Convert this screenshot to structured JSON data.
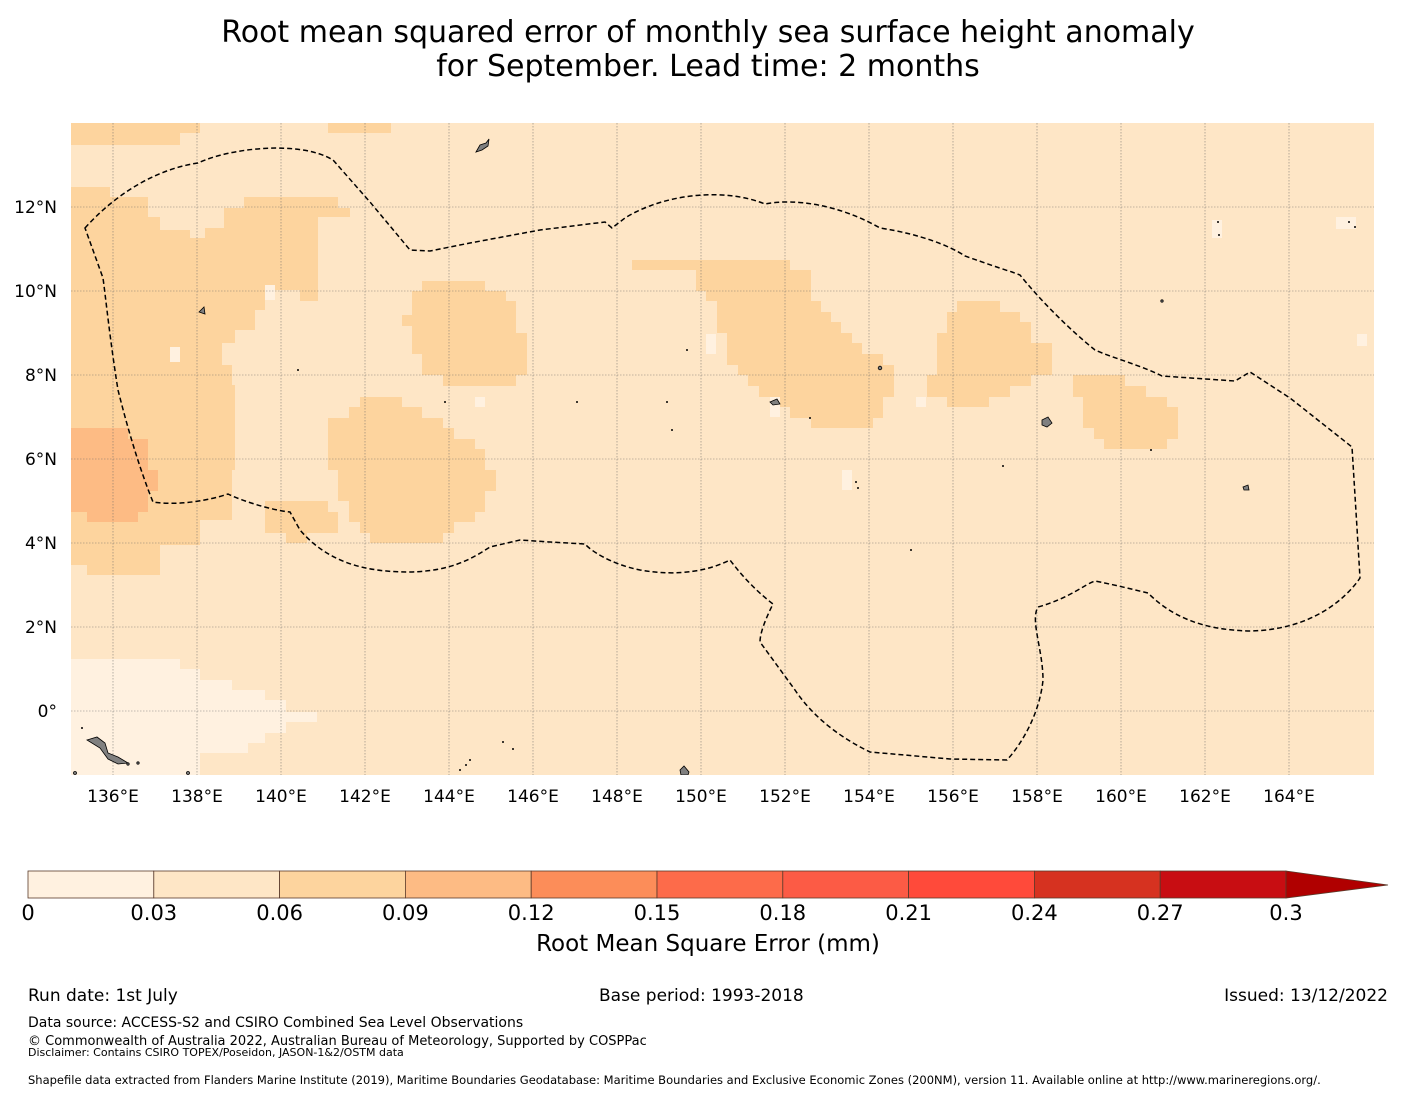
{
  "title": {
    "line1": "Root mean squared error of monthly sea surface height anomaly",
    "line2": "for September. Lead time: 2 months"
  },
  "map": {
    "lat_labels": [
      "12°N",
      "10°N",
      "8°N",
      "6°N",
      "4°N",
      "2°N",
      "0°"
    ],
    "lon_labels": [
      "136°E",
      "138°E",
      "140°E",
      "142°E",
      "144°E",
      "146°E",
      "148°E",
      "150°E",
      "152°E",
      "154°E",
      "156°E",
      "158°E",
      "160°E",
      "162°E",
      "164°E"
    ],
    "background_color": "#fee6c6",
    "boundary_style": "dashed black line (EEZ boundary)"
  },
  "colorbar": {
    "ticks": [
      "0",
      "0.03",
      "0.06",
      "0.09",
      "0.12",
      "0.15",
      "0.18",
      "0.21",
      "0.24",
      "0.27",
      "0.3"
    ],
    "colors": [
      "#fff1e0",
      "#fee6c6",
      "#fdd49e",
      "#fdbb84",
      "#fc8d59",
      "#fd6b4a",
      "#fc5b45",
      "#ff4a3a",
      "#d63220",
      "#c80d12",
      "#b00000",
      "#7a0000"
    ],
    "label": "Root Mean Square Error (mm)"
  },
  "footer": {
    "run_date": "Run date: 1st July",
    "base_period": "Base period: 1993-2018",
    "issued": "Issued: 13/12/2022",
    "data_source": "Data source: ACCESS-S2 and CSIRO Combined Sea Level Observations",
    "copyright": "© Commonwealth of Australia 2022, Australian Bureau of Meteorology, Supported by COSPPac",
    "disclaimer": "Disclaimer: Contains CSIRO TOPEX/Poseidon, JASON-1&2/OSTM data",
    "shapefile": "Shapefile data extracted from Flanders Marine Institute (2019), Maritime Boundaries Geodatabase: Maritime Boundaries and Exclusive Economic Zones (200NM), version 11. Available online at http://www.marineregions.org/."
  }
}
